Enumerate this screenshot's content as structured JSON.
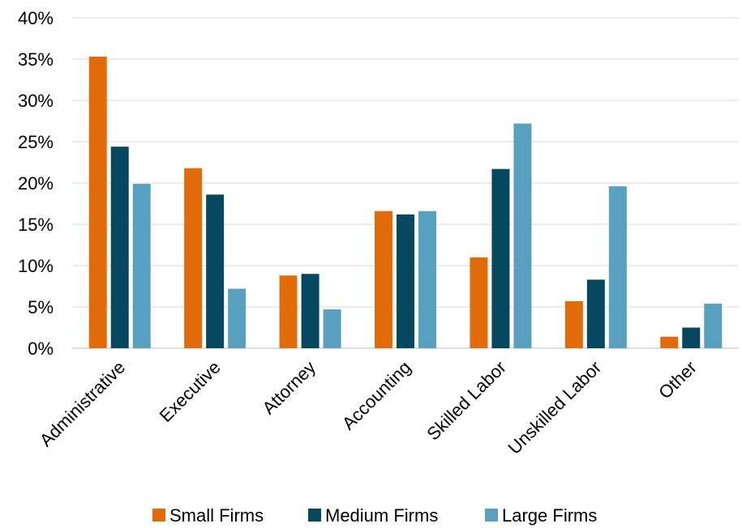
{
  "chart_data": {
    "type": "bar",
    "title": "",
    "xlabel": "",
    "ylabel": "",
    "categories": [
      "Administrative",
      "Executive",
      "Attorney",
      "Accounting",
      "Skilled Labor",
      "Unskilled Labor",
      "Other"
    ],
    "series": [
      {
        "name": "Small Firms",
        "color": "#e36c0a",
        "values": [
          35.3,
          21.8,
          8.8,
          16.6,
          11.0,
          5.7,
          1.4
        ]
      },
      {
        "name": "Medium Firms",
        "color": "#064860",
        "values": [
          24.4,
          18.6,
          9.0,
          16.2,
          21.7,
          8.3,
          2.5
        ]
      },
      {
        "name": "Large Firms",
        "color": "#58a0c0",
        "values": [
          19.9,
          7.2,
          4.7,
          16.6,
          27.2,
          19.6,
          5.4
        ]
      }
    ],
    "ylim": [
      0,
      40
    ],
    "yticks": [
      0,
      5,
      10,
      15,
      20,
      25,
      30,
      35,
      40
    ],
    "ytick_labels": [
      "0%",
      "5%",
      "10%",
      "15%",
      "20%",
      "25%",
      "30%",
      "35%",
      "40%"
    ],
    "grid": true,
    "legend_position": "bottom"
  }
}
